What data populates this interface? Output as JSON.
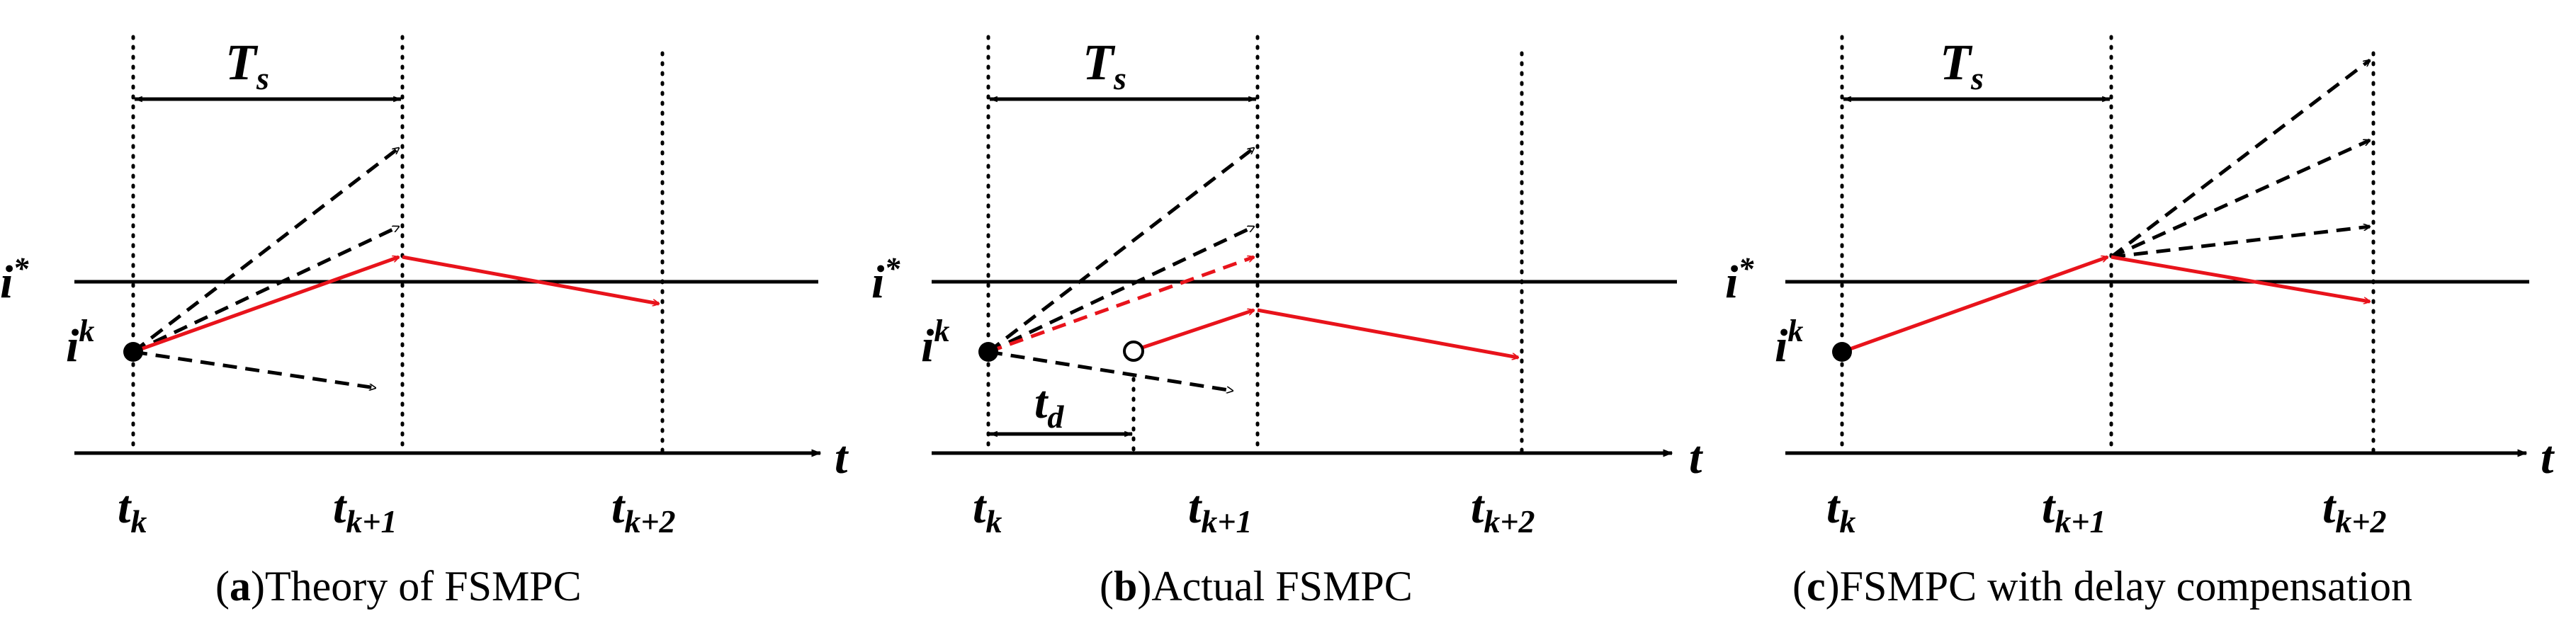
{
  "colors": {
    "ink": "#000000",
    "accent": "#e8131b",
    "background": "#ffffff"
  },
  "panels": [
    {
      "id": "a",
      "caption_letter": "a",
      "caption_text": "Theory of FSMPC",
      "labels": {
        "period": "T",
        "period_sub": "s",
        "ref": "i",
        "ref_sup": "*",
        "state": "i",
        "state_sup": "k",
        "axis": "t",
        "t0": "t",
        "t0_sub": "k",
        "t1": "t",
        "t1_sub": "k+1",
        "t2": "t",
        "t2_sub": "k+2"
      }
    },
    {
      "id": "b",
      "caption_letter": "b",
      "caption_text": "Actual FSMPC",
      "labels": {
        "period": "T",
        "period_sub": "s",
        "delay": "t",
        "delay_sub": "d",
        "ref": "i",
        "ref_sup": "*",
        "state": "i",
        "state_sup": "k",
        "axis": "t",
        "t0": "t",
        "t0_sub": "k",
        "t1": "t",
        "t1_sub": "k+1",
        "t2": "t",
        "t2_sub": "k+2"
      }
    },
    {
      "id": "c",
      "caption_letter": "c",
      "caption_text": "FSMPC with delay compensation",
      "labels": {
        "period": "T",
        "period_sub": "s",
        "ref": "i",
        "ref_sup": "*",
        "state": "i",
        "state_sup": "k",
        "axis": "t",
        "t0": "t",
        "t0_sub": "k",
        "t1": "t",
        "t1_sub": "k+1",
        "t2": "t",
        "t2_sub": "k+2"
      }
    }
  ]
}
